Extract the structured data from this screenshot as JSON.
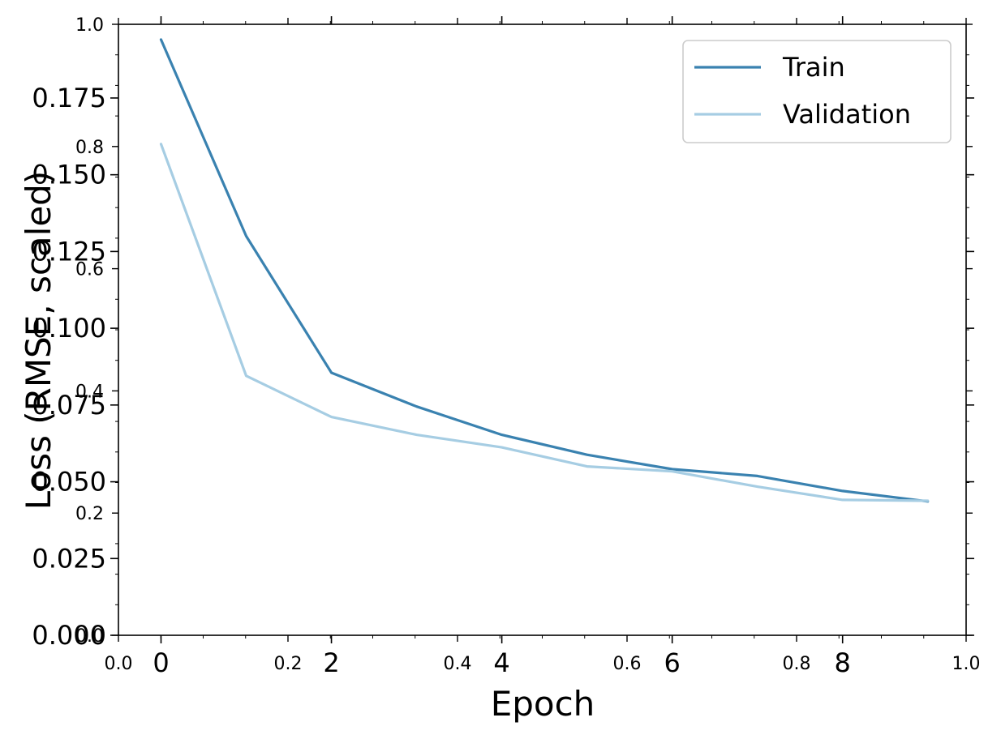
{
  "chart_data": {
    "type": "line",
    "xlabel": "Epoch",
    "ylabel": "Loss (RMSE, scaled)",
    "x": [
      0,
      1,
      2,
      3,
      4,
      5,
      6,
      7,
      8,
      9
    ],
    "xticks": [
      "0",
      "2",
      "4",
      "6",
      "8"
    ],
    "xtick_values": [
      0,
      2,
      4,
      6,
      8
    ],
    "yticks": [
      "0.000",
      "0.025",
      "0.050",
      "0.075",
      "0.100",
      "0.125",
      "0.150",
      "0.175"
    ],
    "ytick_values": [
      0.0,
      0.025,
      0.05,
      0.075,
      0.1,
      0.125,
      0.15,
      0.175
    ],
    "xlim": [
      -0.5,
      9.45
    ],
    "ylim": [
      0.0,
      0.199
    ],
    "legend_position": "top-right",
    "series": [
      {
        "name": "Train",
        "color": "#3a82b0",
        "values": [
          0.194,
          0.13,
          0.0855,
          0.0745,
          0.0653,
          0.0588,
          0.0541,
          0.0519,
          0.047,
          0.0436
        ]
      },
      {
        "name": "Validation",
        "color": "#a6cde3",
        "values": [
          0.16,
          0.0845,
          0.0711,
          0.0653,
          0.0612,
          0.055,
          0.0534,
          0.0484,
          0.0441,
          0.0438
        ]
      }
    ],
    "secondary_axes": {
      "xticks": [
        "0.0",
        "0.2",
        "0.4",
        "0.6",
        "0.8",
        "1.0"
      ],
      "xtick_values": [
        0.0,
        0.2,
        0.4,
        0.6,
        0.8,
        1.0
      ],
      "yticks": [
        "0.0",
        "0.2",
        "0.4",
        "0.6",
        "0.8",
        "1.0"
      ],
      "ytick_values": [
        0.0,
        0.2,
        0.4,
        0.6,
        0.8,
        1.0
      ]
    }
  }
}
